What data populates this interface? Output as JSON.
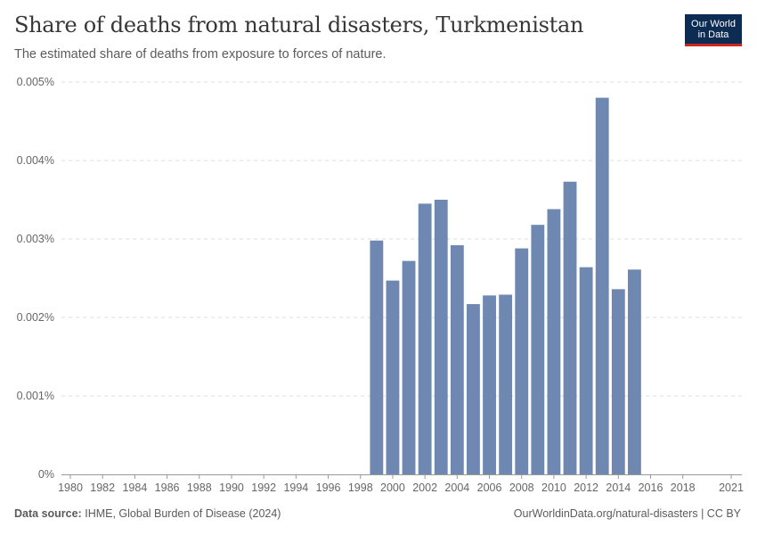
{
  "header": {
    "title": "Share of deaths from natural disasters, Turkmenistan",
    "subtitle": "The estimated share of deaths from exposure to forces of nature."
  },
  "logo": {
    "line1": "Our World",
    "line2": "in Data"
  },
  "footer": {
    "source_label": "Data source:",
    "source_text": "IHME, Global Burden of Disease (2024)",
    "right_text": "OurWorldinData.org/natural-disasters | CC BY"
  },
  "colors": {
    "bar": "#6f88b1",
    "grid": "#dddddd",
    "axis": "#999999"
  },
  "chart_data": {
    "type": "bar",
    "title": "Share of deaths from natural disasters, Turkmenistan",
    "xlabel": "",
    "ylabel": "",
    "ylim": [
      0,
      0.005
    ],
    "xlim": [
      1980,
      2021
    ],
    "y_ticks": [
      0,
      0.001,
      0.002,
      0.003,
      0.004,
      0.005
    ],
    "y_tick_labels": [
      "0%",
      "0.001%",
      "0.002%",
      "0.003%",
      "0.004%",
      "0.005%"
    ],
    "x_ticks": [
      1980,
      1982,
      1984,
      1986,
      1988,
      1990,
      1992,
      1994,
      1996,
      1998,
      2000,
      2002,
      2004,
      2006,
      2008,
      2010,
      2012,
      2014,
      2016,
      2018,
      2021
    ],
    "x_tick_labels": [
      "1980",
      "1982",
      "1984",
      "1986",
      "1988",
      "1990",
      "1992",
      "1994",
      "1996",
      "1998",
      "2000",
      "2002",
      "2004",
      "2006",
      "2008",
      "2010",
      "2012",
      "2014",
      "2016",
      "2018",
      "2021"
    ],
    "categories": [
      1999,
      2000,
      2001,
      2002,
      2003,
      2004,
      2005,
      2006,
      2007,
      2008,
      2009,
      2010,
      2011,
      2012,
      2013,
      2014,
      2015
    ],
    "values": [
      0.00298,
      0.00247,
      0.00272,
      0.00345,
      0.0035,
      0.00292,
      0.00217,
      0.00228,
      0.00229,
      0.00288,
      0.00318,
      0.00338,
      0.00373,
      0.00264,
      0.0048,
      0.00236,
      0.00261
    ],
    "unit": "%"
  }
}
